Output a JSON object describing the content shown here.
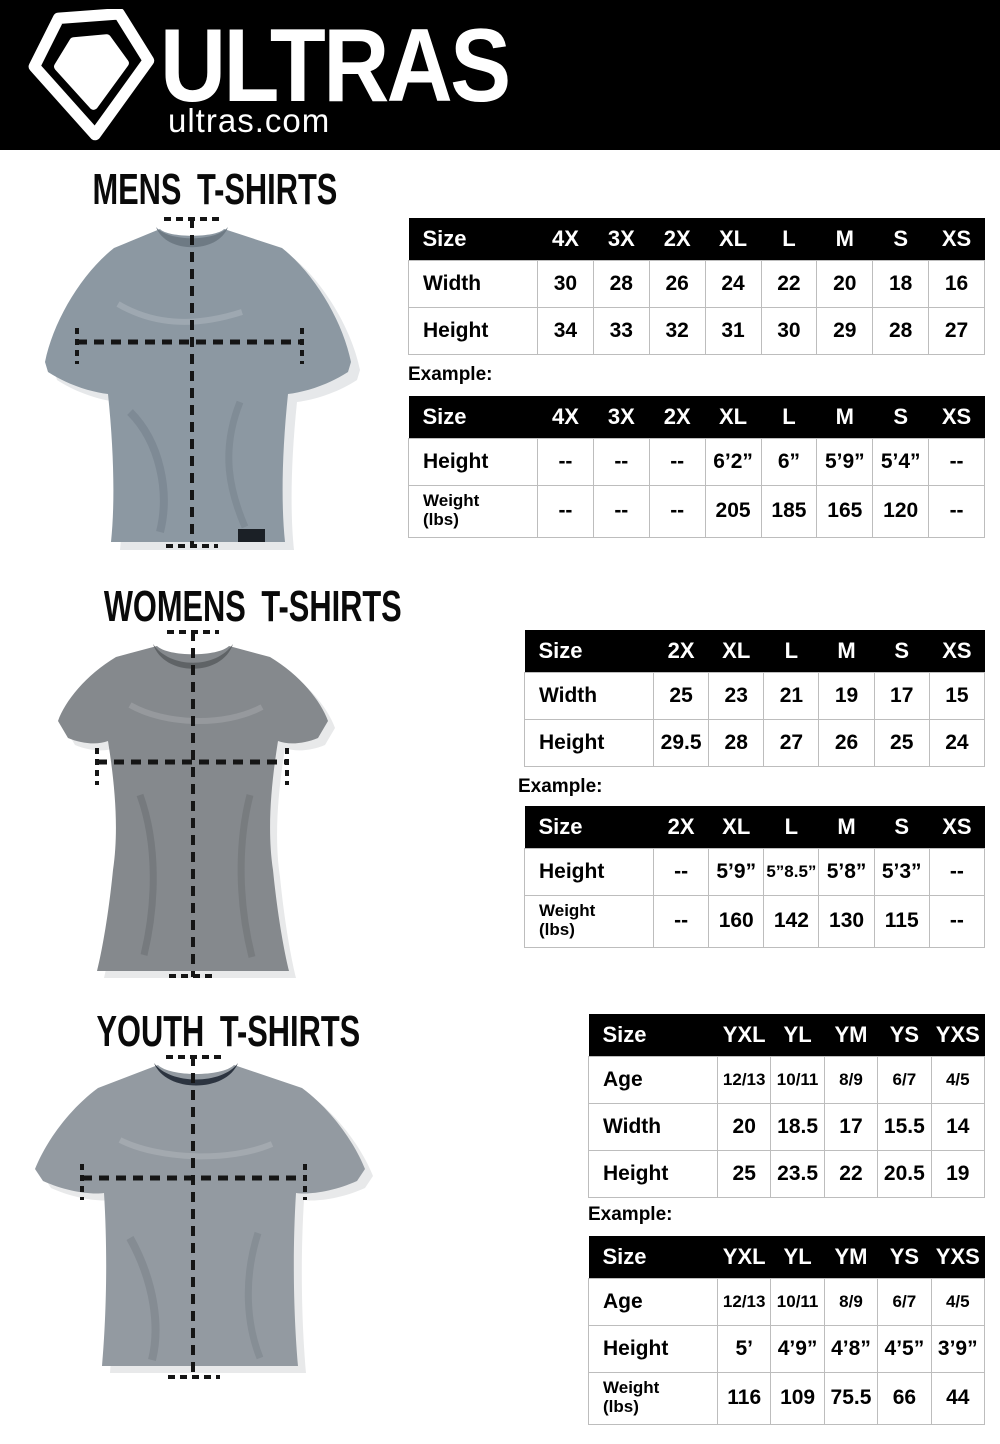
{
  "brand": {
    "name": "ULTRAS",
    "domain": "ultras.com",
    "logo_icon": "pentagon-crest-icon"
  },
  "colors": {
    "header_bg": "#000000",
    "table_header_bg": "#000000",
    "table_header_text": "#ffffff",
    "grid_line": "#bdbdbd",
    "mens_shirt": "#8c98a2",
    "womens_shirt": "#85898d",
    "youth_shirt": "#939aa1",
    "dash_line": "#151515"
  },
  "sections": [
    {
      "id": "mens",
      "title": "MENS T-SHIRTS",
      "example_label": "Example:",
      "size_table": {
        "columns": [
          "Size",
          "4X",
          "3X",
          "2X",
          "XL",
          "L",
          "M",
          "S",
          "XS"
        ],
        "rows": [
          {
            "label": "Width",
            "values": [
              "30",
              "28",
              "26",
              "24",
              "22",
              "20",
              "18",
              "16"
            ]
          },
          {
            "label": "Height",
            "values": [
              "34",
              "33",
              "32",
              "31",
              "30",
              "29",
              "28",
              "27"
            ]
          }
        ]
      },
      "example_table": {
        "columns": [
          "Size",
          "4X",
          "3X",
          "2X",
          "XL",
          "L",
          "M",
          "S",
          "XS"
        ],
        "rows": [
          {
            "label": "Height",
            "values": [
              "--",
              "--",
              "--",
              "6’2”",
              "6”",
              "5’9”",
              "5’4”",
              "--"
            ]
          },
          {
            "label": "Weight (lbs)",
            "values": [
              "--",
              "--",
              "--",
              "205",
              "185",
              "165",
              "120",
              "--"
            ]
          }
        ]
      }
    },
    {
      "id": "womens",
      "title": "WOMENS T-SHIRTS",
      "example_label": "Example:",
      "size_table": {
        "columns": [
          "Size",
          "2X",
          "XL",
          "L",
          "M",
          "S",
          "XS"
        ],
        "rows": [
          {
            "label": "Width",
            "values": [
              "25",
              "23",
              "21",
              "19",
              "17",
              "15"
            ]
          },
          {
            "label": "Height",
            "values": [
              "29.5",
              "28",
              "27",
              "26",
              "25",
              "24"
            ]
          }
        ]
      },
      "example_table": {
        "columns": [
          "Size",
          "2X",
          "XL",
          "L",
          "M",
          "S",
          "XS"
        ],
        "rows": [
          {
            "label": "Height",
            "values": [
              "--",
              "5’9”",
              "5”8.5”",
              "5’8”",
              "5’3”",
              "--"
            ]
          },
          {
            "label": "Weight (lbs)",
            "values": [
              "--",
              "160",
              "142",
              "130",
              "115",
              "--"
            ]
          }
        ]
      }
    },
    {
      "id": "youth",
      "title": "YOUTH T-SHIRTS",
      "example_label": "Example:",
      "size_table": {
        "columns": [
          "Size",
          "YXL",
          "YL",
          "YM",
          "YS",
          "YXS"
        ],
        "rows": [
          {
            "label": "Age",
            "values": [
              "12/13",
              "10/11",
              "8/9",
              "6/7",
              "4/5"
            ]
          },
          {
            "label": "Width",
            "values": [
              "20",
              "18.5",
              "17",
              "15.5",
              "14"
            ]
          },
          {
            "label": "Height",
            "values": [
              "25",
              "23.5",
              "22",
              "20.5",
              "19"
            ]
          }
        ]
      },
      "example_table": {
        "columns": [
          "Size",
          "YXL",
          "YL",
          "YM",
          "YS",
          "YXS"
        ],
        "rows": [
          {
            "label": "Age",
            "values": [
              "12/13",
              "10/11",
              "8/9",
              "6/7",
              "4/5"
            ]
          },
          {
            "label": "Height",
            "values": [
              "5’",
              "4’9”",
              "4’8”",
              "4’5”",
              "3’9”"
            ]
          },
          {
            "label": "Weight (lbs)",
            "values": [
              "116",
              "109",
              "75.5",
              "66",
              "44"
            ]
          }
        ]
      }
    }
  ]
}
